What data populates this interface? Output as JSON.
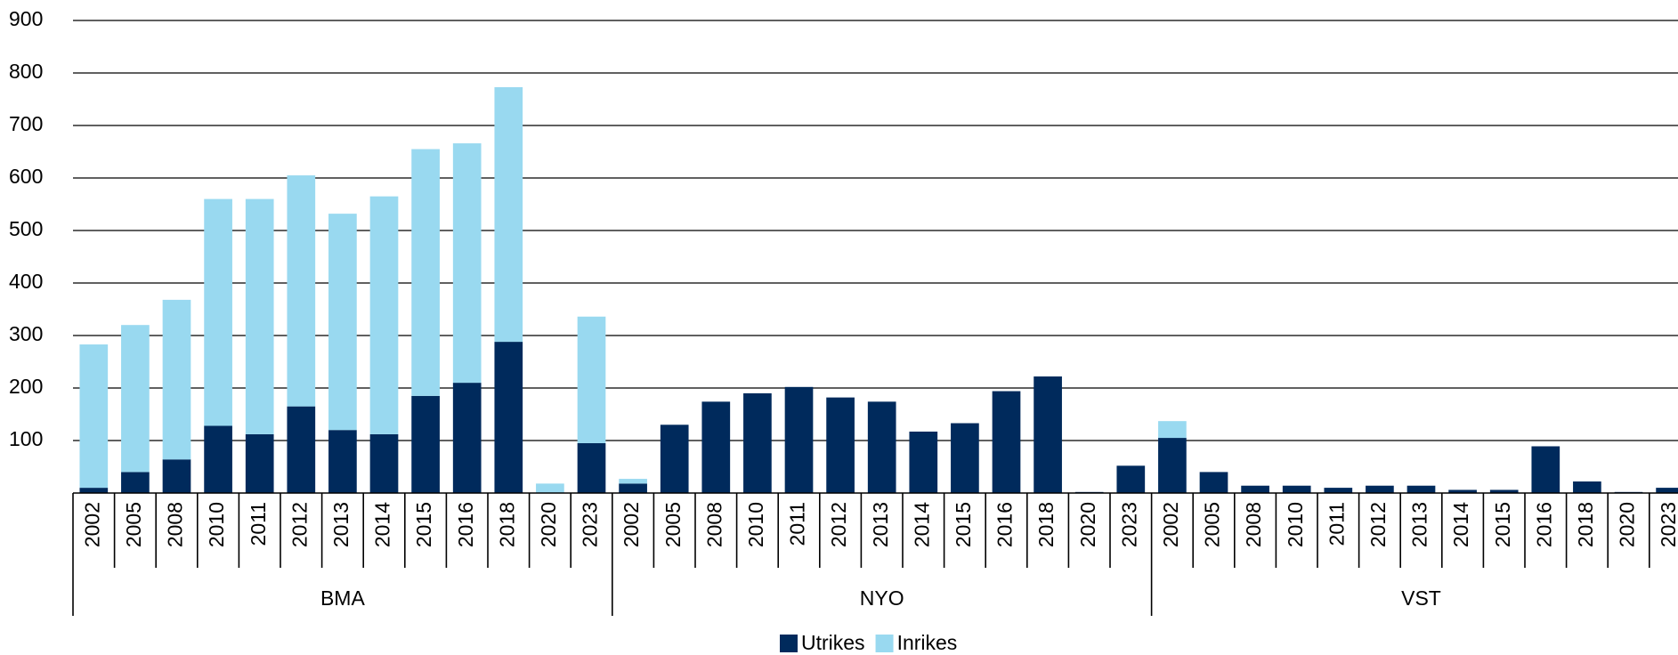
{
  "chart_data": {
    "type": "stacked_bar",
    "groups": [
      "BMA",
      "NYO",
      "VST"
    ],
    "categories": [
      "2002",
      "2005",
      "2008",
      "2010",
      "2011",
      "2012",
      "2013",
      "2014",
      "2015",
      "2016",
      "2018",
      "2020",
      "2023",
      "2002",
      "2005",
      "2008",
      "2010",
      "2011",
      "2012",
      "2013",
      "2014",
      "2015",
      "2016",
      "2018",
      "2020",
      "2023",
      "2002",
      "2005",
      "2008",
      "2010",
      "2011",
      "2012",
      "2013",
      "2014",
      "2015",
      "2016",
      "2018",
      "2020",
      "2023"
    ],
    "series": [
      {
        "name": "Utrikes",
        "color": "#002a5c",
        "values": [
          10,
          40,
          64,
          128,
          112,
          165,
          120,
          112,
          185,
          210,
          288,
          0,
          95,
          18,
          130,
          174,
          190,
          202,
          182,
          174,
          117,
          133,
          194,
          222,
          2,
          52,
          105,
          40,
          14,
          14,
          10,
          14,
          14,
          6,
          6,
          89,
          22,
          2,
          10
        ]
      },
      {
        "name": "Inrikes",
        "color": "#99d9f0",
        "values": [
          273,
          280,
          304,
          432,
          448,
          440,
          412,
          453,
          470,
          456,
          485,
          18,
          241,
          9,
          0,
          0,
          0,
          0,
          0,
          0,
          0,
          0,
          0,
          0,
          0,
          0,
          32,
          0,
          0,
          0,
          0,
          0,
          0,
          0,
          0,
          0,
          0,
          0,
          0
        ]
      }
    ],
    "ylim": [
      0,
      900
    ],
    "yticks": [
      100,
      200,
      300,
      400,
      500,
      600,
      700,
      800,
      900
    ],
    "grid": true,
    "legend": "bottom"
  }
}
